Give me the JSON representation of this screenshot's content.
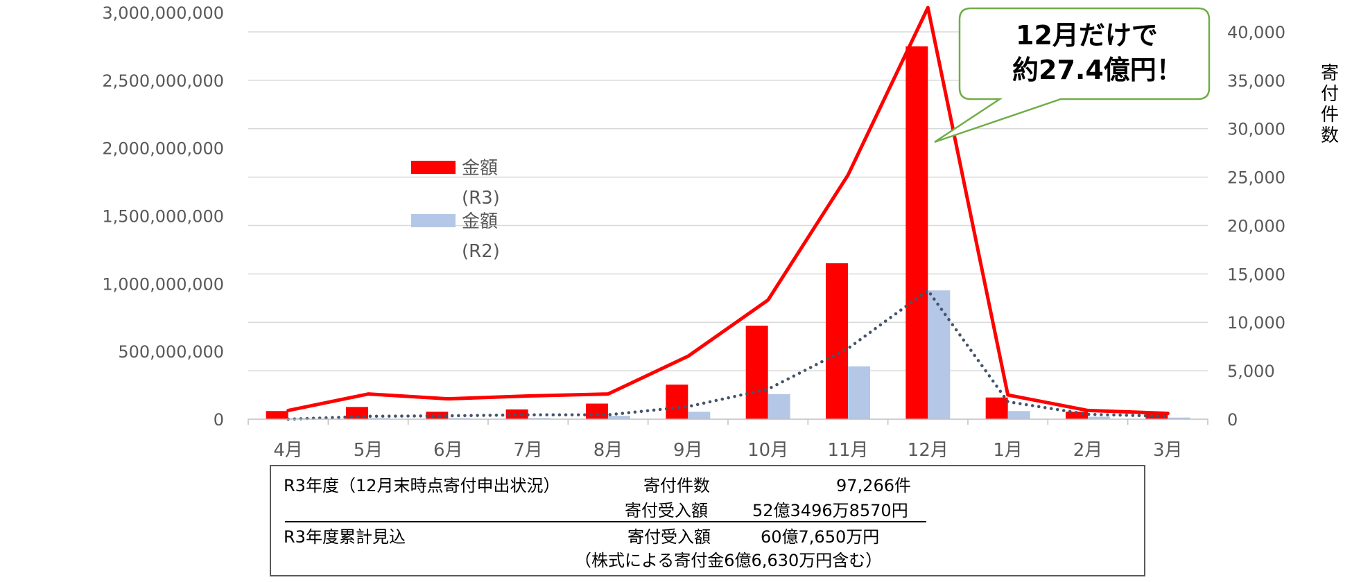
{
  "chart_data": {
    "type": "bar+line",
    "categories": [
      "4月",
      "5月",
      "6月",
      "7月",
      "8月",
      "9月",
      "10月",
      "11月",
      "12月",
      "1月",
      "2月",
      "3月"
    ],
    "bar_series": [
      {
        "name": "金額 (R3)",
        "color": "#FF0000",
        "values": [
          60000000,
          90000000,
          55000000,
          72000000,
          115000000,
          255000000,
          690000000,
          1150000000,
          2750000000,
          160000000,
          55000000,
          48000000
        ]
      },
      {
        "name": "金額 (R2)",
        "color": "#B4C7E7",
        "values": [
          8000000,
          8000000,
          8000000,
          8000000,
          25000000,
          55000000,
          185000000,
          390000000,
          950000000,
          60000000,
          18000000,
          12000000
        ]
      }
    ],
    "line_series": [
      {
        "color": "#FF0000",
        "style": "solid",
        "axis": "right",
        "values": [
          900,
          2600,
          2100,
          2400,
          2600,
          6500,
          12300,
          25200,
          42500,
          2500,
          900,
          600
        ]
      },
      {
        "color": "#44546A",
        "style": "dotted",
        "axis": "right",
        "values": [
          0,
          300,
          350,
          450,
          450,
          1300,
          3100,
          7300,
          13300,
          1800,
          500,
          300
        ]
      }
    ],
    "y_left": {
      "min": 0,
      "max": 3000000000,
      "ticks": [
        "0",
        "500,000,000",
        "1,000,000,000",
        "1,500,000,000",
        "2,000,000,000",
        "2,500,000,000",
        "3,000,000,000"
      ]
    },
    "y_right": {
      "min": 0,
      "max": 42000,
      "label": "寄付件数",
      "ticks": [
        "0",
        "5,000",
        "10,000",
        "15,000",
        "20,000",
        "25,000",
        "30,000",
        "35,000",
        "40,000"
      ]
    },
    "legend": [
      {
        "label": "金額",
        "sub": "(R3)",
        "color": "#FF0000"
      },
      {
        "label": "金額",
        "sub": "(R2)",
        "color": "#B4C7E7"
      }
    ],
    "callout": {
      "line1": "12月だけで",
      "line2": "約27.4億円！",
      "border_color": "#70AD47"
    },
    "grid": true
  },
  "info_box": {
    "row1_label": "R3年度（12月末時点寄付申出状況）",
    "row1_key": "寄付件数",
    "row1_value": "97,266件",
    "row2_key": "寄付受入額",
    "row2_value": "52億3496万8570円",
    "row3_label": "R3年度累計見込",
    "row3_key": "寄付受入額",
    "row3_value": "60億7,650万円",
    "row4_note": "（株式による寄付金6億6,630万円含む）"
  }
}
